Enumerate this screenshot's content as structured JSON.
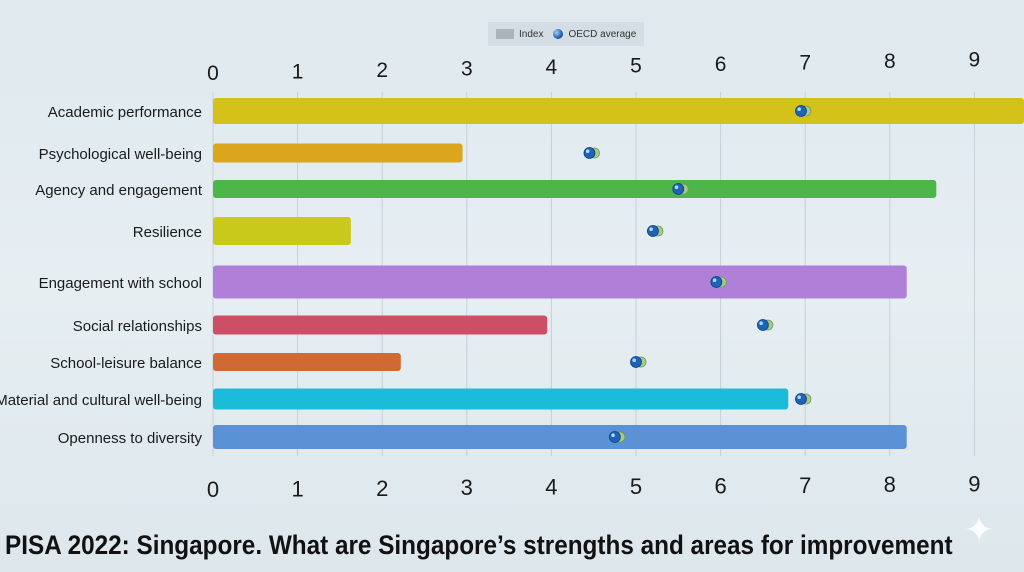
{
  "title": "PISA 2022: Singapore. What are Singapore’s strengths and areas for improvement",
  "legend": {
    "index_label": "Index",
    "oecd_label": "OECD average"
  },
  "chart_data": {
    "type": "bar",
    "orientation": "horizontal",
    "title": "PISA 2022: Singapore. What are Singapore’s strengths and areas for improvement",
    "xlim": [
      0,
      9.6
    ],
    "xticks": [
      "0",
      "1",
      "2",
      "3",
      "4",
      "5",
      "6",
      "7",
      "8",
      "9"
    ],
    "grid": true,
    "legend_position": "top-center",
    "groups": [
      [
        "Academic performance",
        "Psychological well-being",
        "Agency and engagement",
        "Resilience"
      ],
      [
        "Engagement with school",
        "Social relationships",
        "School-leisure balance",
        "Material and cultural well-being",
        "Openness to diversity"
      ]
    ],
    "categories": [
      "Academic performance",
      "Psychological well-being",
      "Agency and engagement",
      "Resilience",
      "Engagement with school",
      "Social relationships",
      "School-leisure balance",
      "Material and cultural well-being",
      "Openness to diversity"
    ],
    "series": [
      {
        "name": "Index",
        "values": [
          9.6,
          2.95,
          8.55,
          1.63,
          8.2,
          3.95,
          2.22,
          6.8,
          8.2
        ]
      },
      {
        "name": "OECD average",
        "values": [
          6.95,
          4.45,
          5.5,
          5.2,
          5.95,
          6.5,
          5.0,
          6.95,
          4.75
        ]
      }
    ],
    "colors": [
      "#d4c21a",
      "#dba51c",
      "#4db649",
      "#c9c91c",
      "#b07fd8",
      "#cc4f67",
      "#cf6a35",
      "#1bbcd9",
      "#5b92d6"
    ]
  }
}
